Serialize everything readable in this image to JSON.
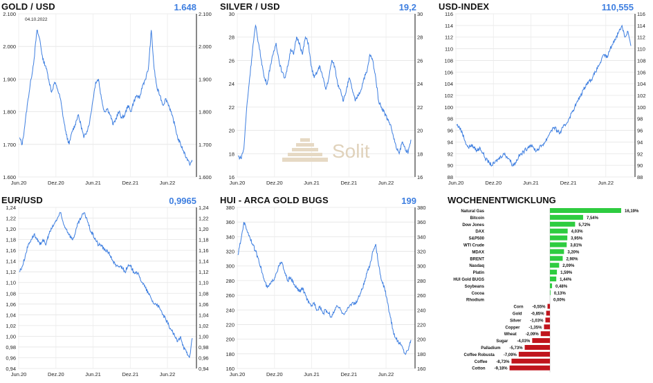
{
  "watermark": {
    "text": "Solit"
  },
  "charts": [
    {
      "key": "gold",
      "title": "GOLD / USD",
      "value": "1.648",
      "annotation": "04.10.2022",
      "ylim": [
        1600,
        2100
      ],
      "yticks": [
        "1.600",
        "1.700",
        "1.800",
        "1.900",
        "2.000",
        "2.100"
      ],
      "ytick_values": [
        1600,
        1700,
        1800,
        1900,
        2000,
        2100
      ],
      "xticks": [
        "Jun.20",
        "Dez.20",
        "Jun.21",
        "Dez.21",
        "Jun.22"
      ],
      "right_axis": true,
      "color": "#3d7ee0",
      "series": [
        1720,
        1700,
        1770,
        1840,
        1900,
        1960,
        2050,
        2020,
        1960,
        1940,
        1900,
        1860,
        1890,
        1870,
        1840,
        1780,
        1730,
        1700,
        1740,
        1760,
        1790,
        1760,
        1720,
        1740,
        1770,
        1830,
        1890,
        1900,
        1840,
        1800,
        1810,
        1790,
        1760,
        1780,
        1800,
        1780,
        1790,
        1820,
        1800,
        1830,
        1850,
        1840,
        1880,
        1900,
        1930,
        2050,
        1930,
        1870,
        1850,
        1820,
        1840,
        1820,
        1790,
        1760,
        1720,
        1700,
        1680,
        1660,
        1640,
        1648
      ]
    },
    {
      "key": "silver",
      "title": "SILVER / USD",
      "value": "19,2",
      "ylim": [
        16,
        30
      ],
      "yticks": [
        "16",
        "18",
        "20",
        "22",
        "24",
        "26",
        "28",
        "30"
      ],
      "ytick_values": [
        16,
        18,
        20,
        22,
        24,
        26,
        28,
        30
      ],
      "xticks": [
        "Jun.20",
        "Dez.20",
        "Jun.21",
        "Dez.21",
        "Jun.22"
      ],
      "right_axis": true,
      "color": "#3d7ee0",
      "series": [
        17.8,
        17.6,
        18.4,
        22,
        24.5,
        27,
        29,
        27.5,
        26,
        24.5,
        24,
        25.5,
        26.5,
        27.5,
        26,
        25,
        24.5,
        25.5,
        27,
        26.5,
        28,
        27.5,
        26.5,
        28,
        27.5,
        25.5,
        24.5,
        25,
        25.5,
        24.5,
        23.5,
        24.5,
        26,
        25.5,
        24,
        23.5,
        22.5,
        23.5,
        24.5,
        23.5,
        22.5,
        23,
        23.5,
        24.5,
        25,
        26.5,
        26,
        24.5,
        22.5,
        22,
        21.5,
        21,
        20.5,
        19.5,
        18.5,
        18,
        19,
        18.5,
        18,
        19.2
      ]
    },
    {
      "key": "usd",
      "title": "USD-INDEX",
      "value": "110,555",
      "ylim": [
        88,
        116
      ],
      "yticks": [
        "88",
        "90",
        "92",
        "94",
        "96",
        "98",
        "100",
        "102",
        "104",
        "106",
        "108",
        "110",
        "112",
        "114",
        "116"
      ],
      "ytick_values": [
        88,
        90,
        92,
        94,
        96,
        98,
        100,
        102,
        104,
        106,
        108,
        110,
        112,
        114,
        116
      ],
      "xticks": [
        "Jun.20",
        "Dez.20",
        "Jun.21",
        "Dez.21",
        "Jun.22"
      ],
      "right_axis": true,
      "color": "#3d7ee0",
      "series": [
        97,
        96.5,
        95.5,
        94,
        93,
        93.5,
        93,
        92.5,
        93,
        92,
        91,
        90.5,
        90,
        90.5,
        91,
        91.5,
        92,
        91.5,
        91,
        90,
        90.5,
        91.5,
        92,
        92.5,
        93,
        93.5,
        93,
        92.5,
        93,
        93.5,
        94,
        95,
        96,
        96.5,
        96,
        95.5,
        96.5,
        97,
        98,
        99,
        100,
        101,
        102,
        103,
        104,
        104.5,
        105,
        106,
        107,
        108,
        109,
        108.5,
        110,
        111,
        112,
        113,
        114,
        112,
        113,
        110.5
      ]
    },
    {
      "key": "eur",
      "title": "EUR/USD",
      "value": "0,9965",
      "ylim": [
        0.94,
        1.24
      ],
      "yticks": [
        "0,94",
        "0,96",
        "0,98",
        "1,00",
        "1,02",
        "1,04",
        "1,06",
        "1,08",
        "1,10",
        "1,12",
        "1,14",
        "1,16",
        "1,18",
        "1,20",
        "1,22",
        "1,24"
      ],
      "ytick_values": [
        0.94,
        0.96,
        0.98,
        1.0,
        1.02,
        1.04,
        1.06,
        1.08,
        1.1,
        1.12,
        1.14,
        1.16,
        1.18,
        1.2,
        1.22,
        1.24
      ],
      "xticks": [
        "Jun.20",
        "Dez.20",
        "Jun.21",
        "Dez.21",
        "Jun.22"
      ],
      "right_axis": true,
      "color": "#3d7ee0",
      "series": [
        1.12,
        1.13,
        1.15,
        1.17,
        1.18,
        1.19,
        1.18,
        1.17,
        1.18,
        1.17,
        1.19,
        1.2,
        1.21,
        1.22,
        1.23,
        1.21,
        1.2,
        1.19,
        1.18,
        1.19,
        1.21,
        1.22,
        1.23,
        1.22,
        1.2,
        1.19,
        1.18,
        1.17,
        1.17,
        1.16,
        1.16,
        1.15,
        1.14,
        1.13,
        1.13,
        1.13,
        1.12,
        1.13,
        1.13,
        1.12,
        1.12,
        1.11,
        1.1,
        1.09,
        1.08,
        1.07,
        1.06,
        1.06,
        1.05,
        1.04,
        1.03,
        1.02,
        1.01,
        1.0,
        0.99,
        1.0,
        0.98,
        0.97,
        0.96,
        0.9965
      ]
    },
    {
      "key": "hui",
      "title": "HUI - ARCA GOLD BUGS",
      "value": "199",
      "ylim": [
        160,
        380
      ],
      "yticks": [
        "160",
        "180",
        "200",
        "220",
        "240",
        "260",
        "280",
        "300",
        "320",
        "340",
        "360",
        "380"
      ],
      "ytick_values": [
        160,
        180,
        200,
        220,
        240,
        260,
        280,
        300,
        320,
        340,
        360,
        380
      ],
      "xticks": [
        "Jun.20",
        "Dez.20",
        "Jun.21",
        "Dez.21",
        "Jun.22"
      ],
      "right_axis": true,
      "color": "#3d7ee0",
      "series": [
        315,
        335,
        360,
        350,
        340,
        330,
        320,
        310,
        295,
        280,
        270,
        275,
        280,
        290,
        300,
        305,
        290,
        280,
        285,
        275,
        270,
        265,
        270,
        260,
        250,
        245,
        250,
        240,
        245,
        235,
        240,
        235,
        230,
        240,
        245,
        240,
        235,
        238,
        245,
        250,
        248,
        255,
        265,
        275,
        290,
        300,
        320,
        330,
        300,
        280,
        270,
        250,
        230,
        210,
        200,
        195,
        190,
        180,
        185,
        199
      ]
    }
  ],
  "weekly": {
    "title": "WOCHENENTWICKLUNG",
    "positive_color": "#2ecc40",
    "negative_color": "#c0141c",
    "items": [
      {
        "label": "Natural Gas",
        "value": 16.19,
        "text": "16,19%"
      },
      {
        "label": "Bitcoin",
        "value": 7.54,
        "text": "7,54%"
      },
      {
        "label": "Dow Jones",
        "value": 5.72,
        "text": "5,72%"
      },
      {
        "label": "DAX",
        "value": 4.03,
        "text": "4,03%"
      },
      {
        "label": "S&P500",
        "value": 3.95,
        "text": "3,95%"
      },
      {
        "label": "WTI Crude",
        "value": 3.81,
        "text": "3,81%"
      },
      {
        "label": "MDAX",
        "value": 3.2,
        "text": "3,20%"
      },
      {
        "label": "BRENT",
        "value": 2.9,
        "text": "2,90%"
      },
      {
        "label": "Nasdaq",
        "value": 2.09,
        "text": "2,09%"
      },
      {
        "label": "Platin",
        "value": 1.59,
        "text": "1,59%"
      },
      {
        "label": "HUI Gold BUGS",
        "value": 1.44,
        "text": "1,44%"
      },
      {
        "label": "Soybeans",
        "value": 0.48,
        "text": "0,48%"
      },
      {
        "label": "Cocoa",
        "value": 0.13,
        "text": "0,13%"
      },
      {
        "label": "Rhodium",
        "value": 0.0,
        "text": "0,00%"
      },
      {
        "label": "Corn",
        "value": -0.55,
        "text": "-0,55%"
      },
      {
        "label": "Gold",
        "value": -0.85,
        "text": "-0,85%"
      },
      {
        "label": "Silver",
        "value": -1.03,
        "text": "-1,03%"
      },
      {
        "label": "Copper",
        "value": -1.35,
        "text": "-1,35%"
      },
      {
        "label": "Wheat",
        "value": -2.09,
        "text": "-2,09%"
      },
      {
        "label": "Sugar",
        "value": -4.03,
        "text": "-4,03%"
      },
      {
        "label": "Palladium",
        "value": -5.73,
        "text": "-5,73%"
      },
      {
        "label": "Coffee Robusta",
        "value": -7.09,
        "text": "-7,09%"
      },
      {
        "label": "Coffee",
        "value": -8.73,
        "text": "-8,73%"
      },
      {
        "label": "Cotton",
        "value": -9.18,
        "text": "-9,18%"
      }
    ]
  },
  "chart_data": [
    {
      "type": "line",
      "title": "GOLD / USD",
      "ylim": [
        1600,
        2100
      ],
      "x": [
        "Jun.20",
        "Dez.20",
        "Jun.21",
        "Dez.21",
        "Jun.22"
      ],
      "latest": 1648
    },
    {
      "type": "line",
      "title": "SILVER / USD",
      "ylim": [
        16,
        30
      ],
      "x": [
        "Jun.20",
        "Dez.20",
        "Jun.21",
        "Dez.21",
        "Jun.22"
      ],
      "latest": 19.2
    },
    {
      "type": "line",
      "title": "USD-INDEX",
      "ylim": [
        88,
        116
      ],
      "x": [
        "Jun.20",
        "Dez.20",
        "Jun.21",
        "Dez.21",
        "Jun.22"
      ],
      "latest": 110.555
    },
    {
      "type": "line",
      "title": "EUR/USD",
      "ylim": [
        0.94,
        1.24
      ],
      "x": [
        "Jun.20",
        "Dez.20",
        "Jun.21",
        "Dez.21",
        "Jun.22"
      ],
      "latest": 0.9965
    },
    {
      "type": "line",
      "title": "HUI - ARCA GOLD BUGS",
      "ylim": [
        160,
        380
      ],
      "x": [
        "Jun.20",
        "Dez.20",
        "Jun.21",
        "Dez.21",
        "Jun.22"
      ],
      "latest": 199
    },
    {
      "type": "bar",
      "title": "WOCHENENTWICKLUNG",
      "categories": [
        "Natural Gas",
        "Bitcoin",
        "Dow Jones",
        "DAX",
        "S&P500",
        "WTI Crude",
        "MDAX",
        "BRENT",
        "Nasdaq",
        "Platin",
        "HUI Gold BUGS",
        "Soybeans",
        "Cocoa",
        "Rhodium",
        "Corn",
        "Gold",
        "Silver",
        "Copper",
        "Wheat",
        "Sugar",
        "Palladium",
        "Coffee Robusta",
        "Coffee",
        "Cotton"
      ],
      "values": [
        16.19,
        7.54,
        5.72,
        4.03,
        3.95,
        3.81,
        3.2,
        2.9,
        2.09,
        1.59,
        1.44,
        0.48,
        0.13,
        0.0,
        -0.55,
        -0.85,
        -1.03,
        -1.35,
        -2.09,
        -4.03,
        -5.73,
        -7.09,
        -8.73,
        -9.18
      ]
    }
  ]
}
